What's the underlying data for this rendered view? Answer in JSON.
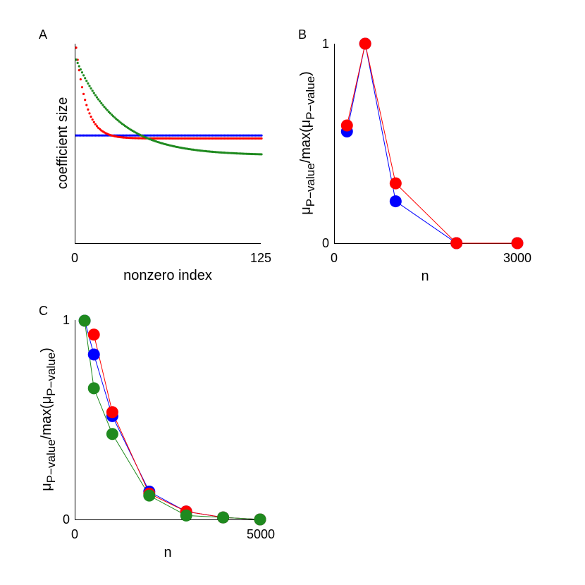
{
  "chart_data": [
    {
      "panel": "A",
      "type": "scatter",
      "xlabel": "nonzero index",
      "ylabel": "coefficient size",
      "xlim": [
        0,
        125
      ],
      "ylim": [
        0,
        1
      ],
      "xticks": [
        "0",
        "125"
      ],
      "series": [
        {
          "name": "blue",
          "color": "#0000ff",
          "model": "constant",
          "start": 0.54,
          "end": 0.54,
          "tau": 1
        },
        {
          "name": "red",
          "color": "#ff0000",
          "model": "exp",
          "start": 0.98,
          "end": 0.525,
          "tau": 7
        },
        {
          "name": "green",
          "color": "#1f8a1f",
          "model": "exp",
          "start": 0.92,
          "end": 0.44,
          "tau": 28
        }
      ]
    },
    {
      "panel": "B",
      "type": "line",
      "xlabel": "n",
      "ylabel": "μ_P-value/max(μ_P-value)",
      "xlim": [
        0,
        3000
      ],
      "ylim": [
        0,
        1
      ],
      "xticks": [
        "0",
        "3000"
      ],
      "yticks": [
        "0",
        "1"
      ],
      "series": [
        {
          "name": "blue",
          "color": "#0000ff",
          "x": [
            200,
            500,
            1000,
            2000,
            3000
          ],
          "y": [
            0.56,
            1.0,
            0.21,
            0.0,
            0.0
          ]
        },
        {
          "name": "red",
          "color": "#ff0000",
          "x": [
            200,
            500,
            1000,
            2000,
            3000
          ],
          "y": [
            0.59,
            1.0,
            0.3,
            0.0,
            0.0
          ]
        }
      ]
    },
    {
      "panel": "C",
      "type": "line",
      "xlabel": "n",
      "ylabel": "μ_P-value/max(μ_P-value)",
      "xlim": [
        0,
        5000
      ],
      "ylim": [
        0,
        1
      ],
      "xticks": [
        "0",
        "5000"
      ],
      "yticks": [
        "0",
        "1"
      ],
      "series": [
        {
          "name": "blue",
          "color": "#0000ff",
          "x": [
            250,
            500,
            1000,
            2000,
            3000,
            4000,
            5000
          ],
          "y": [
            1.0,
            0.83,
            0.52,
            0.14,
            0.04,
            0.01,
            0.0
          ]
        },
        {
          "name": "red",
          "color": "#ff0000",
          "x": [
            500,
            1000,
            2000,
            3000,
            4000,
            5000
          ],
          "y": [
            0.93,
            0.54,
            0.13,
            0.04,
            0.01,
            0.0
          ]
        },
        {
          "name": "green",
          "color": "#1f8a1f",
          "x": [
            250,
            500,
            1000,
            2000,
            3000,
            4000,
            5000
          ],
          "y": [
            1.0,
            0.66,
            0.43,
            0.12,
            0.02,
            0.01,
            0.0
          ]
        }
      ]
    }
  ],
  "panels": {
    "A": {
      "letter": "A"
    },
    "B": {
      "letter": "B"
    },
    "C": {
      "letter": "C"
    }
  },
  "ylabel_parts": {
    "mu": "μ",
    "sub": "P−value",
    "mid": "/max(",
    "end": ")"
  }
}
